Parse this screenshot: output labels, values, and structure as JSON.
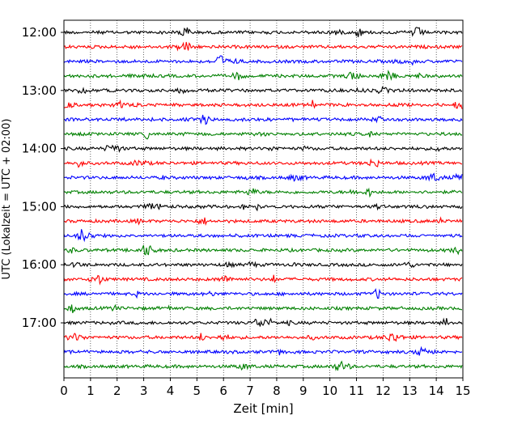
{
  "chart_data": {
    "type": "line",
    "title": "",
    "xlabel": "Zeit  [min]",
    "ylabel": "UTC (Lokalzeit = UTC + 02:00)",
    "xlim": [
      0,
      15
    ],
    "x_ticks": [
      "0",
      "1",
      "2",
      "3",
      "4",
      "5",
      "6",
      "7",
      "8",
      "9",
      "10",
      "11",
      "12",
      "13",
      "14",
      "15"
    ],
    "y_tick_labels": [
      "12:00",
      "13:00",
      "14:00",
      "15:00",
      "16:00",
      "17:00"
    ],
    "grid_x": true,
    "grid_y": false,
    "trace_colors": [
      "#000000",
      "#ff0000",
      "#0000ff",
      "#008000"
    ],
    "rows": [
      {
        "start": "12:00",
        "color": "#000000"
      },
      {
        "start": "12:15",
        "color": "#ff0000"
      },
      {
        "start": "12:30",
        "color": "#0000ff"
      },
      {
        "start": "12:45",
        "color": "#008000"
      },
      {
        "start": "13:00",
        "color": "#000000"
      },
      {
        "start": "13:15",
        "color": "#ff0000"
      },
      {
        "start": "13:30",
        "color": "#0000ff"
      },
      {
        "start": "13:45",
        "color": "#008000"
      },
      {
        "start": "14:00",
        "color": "#000000"
      },
      {
        "start": "14:15",
        "color": "#ff0000"
      },
      {
        "start": "14:30",
        "color": "#0000ff"
      },
      {
        "start": "14:45",
        "color": "#008000"
      },
      {
        "start": "15:00",
        "color": "#000000"
      },
      {
        "start": "15:15",
        "color": "#ff0000"
      },
      {
        "start": "15:30",
        "color": "#0000ff"
      },
      {
        "start": "15:45",
        "color": "#008000"
      },
      {
        "start": "16:00",
        "color": "#000000"
      },
      {
        "start": "16:15",
        "color": "#ff0000"
      },
      {
        "start": "16:30",
        "color": "#0000ff"
      },
      {
        "start": "16:45",
        "color": "#008000"
      },
      {
        "start": "17:00",
        "color": "#000000"
      },
      {
        "start": "17:15",
        "color": "#ff0000"
      },
      {
        "start": "17:30",
        "color": "#0000ff"
      },
      {
        "start": "17:45",
        "color": "#008000"
      }
    ]
  }
}
